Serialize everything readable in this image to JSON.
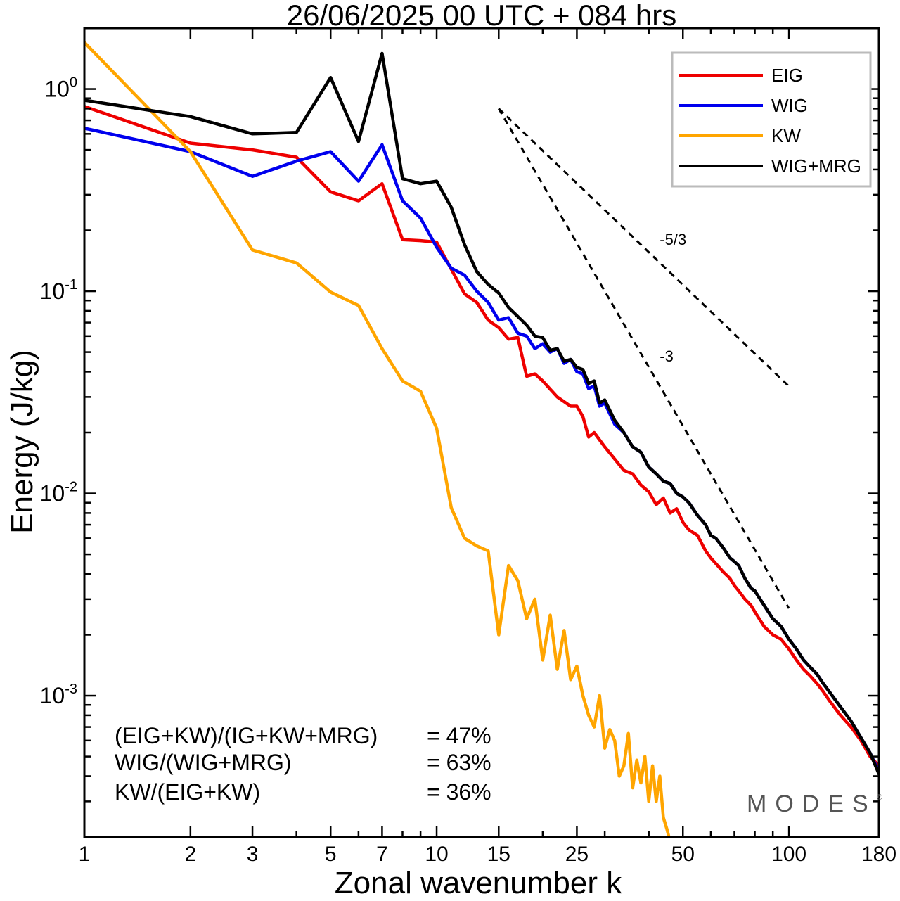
{
  "chart_data": {
    "type": "line",
    "title": "26/06/2025  00 UTC  + 084 hrs",
    "xlabel": "Zonal wavenumber k",
    "ylabel": "Energy (J/kg)",
    "xscale": "log",
    "yscale": "log",
    "xlim": [
      1,
      180
    ],
    "ylim": [
      0.0002,
      2.0
    ],
    "x_ticks": [
      1,
      2,
      3,
      5,
      7,
      10,
      15,
      25,
      50,
      100,
      180
    ],
    "x_tick_labels": [
      "1",
      "2",
      "3",
      "5",
      "7",
      "10",
      "15",
      "25",
      "50",
      "100",
      "180"
    ],
    "y_ticks": [
      {
        "value": 1.0,
        "base": "10",
        "exp": "0"
      },
      {
        "value": 0.1,
        "base": "10",
        "exp": "-1"
      },
      {
        "value": 0.01,
        "base": "10",
        "exp": "-2"
      },
      {
        "value": 0.001,
        "base": "10",
        "exp": "-3"
      }
    ],
    "grid": false,
    "legend_position": "top-right",
    "series": [
      {
        "name": "EIG",
        "color": "#ee0000",
        "points": [
          [
            1,
            0.82
          ],
          [
            2,
            0.54
          ],
          [
            3,
            0.5
          ],
          [
            4,
            0.46
          ],
          [
            5,
            0.31
          ],
          [
            6,
            0.28
          ],
          [
            7,
            0.34
          ],
          [
            8,
            0.18
          ],
          [
            9,
            0.178
          ],
          [
            10,
            0.175
          ],
          [
            12,
            0.097
          ],
          [
            13,
            0.088
          ],
          [
            14,
            0.072
          ],
          [
            15,
            0.066
          ],
          [
            16,
            0.058
          ],
          [
            17,
            0.059
          ],
          [
            18,
            0.038
          ],
          [
            19,
            0.039
          ],
          [
            20,
            0.036
          ],
          [
            22,
            0.03
          ],
          [
            24,
            0.027
          ],
          [
            25,
            0.027
          ],
          [
            26,
            0.024
          ],
          [
            27,
            0.019
          ],
          [
            28,
            0.02
          ],
          [
            30,
            0.017
          ],
          [
            32,
            0.0148
          ],
          [
            34,
            0.013
          ],
          [
            36,
            0.0125
          ],
          [
            38,
            0.011
          ],
          [
            40,
            0.0102
          ],
          [
            42,
            0.0088
          ],
          [
            44,
            0.0095
          ],
          [
            46,
            0.008
          ],
          [
            48,
            0.0084
          ],
          [
            50,
            0.0072
          ],
          [
            52,
            0.0066
          ],
          [
            55,
            0.0062
          ],
          [
            58,
            0.0052
          ],
          [
            60,
            0.0048
          ],
          [
            62,
            0.0045
          ],
          [
            65,
            0.0041
          ],
          [
            68,
            0.0038
          ],
          [
            70,
            0.0035
          ],
          [
            72,
            0.0033
          ],
          [
            75,
            0.003
          ],
          [
            78,
            0.0028
          ],
          [
            80,
            0.0026
          ],
          [
            85,
            0.0022
          ],
          [
            90,
            0.002
          ],
          [
            95,
            0.0019
          ],
          [
            100,
            0.0017
          ],
          [
            105,
            0.0015
          ],
          [
            110,
            0.00135
          ],
          [
            115,
            0.00125
          ],
          [
            120,
            0.00115
          ],
          [
            125,
            0.00105
          ],
          [
            130,
            0.00095
          ],
          [
            140,
            0.0008
          ],
          [
            150,
            0.0007
          ],
          [
            160,
            0.0006
          ],
          [
            170,
            0.0005
          ],
          [
            180,
            0.00045
          ]
        ]
      },
      {
        "name": "WIG",
        "color": "#0000ee",
        "points": [
          [
            1,
            0.64
          ],
          [
            2,
            0.49
          ],
          [
            3,
            0.37
          ],
          [
            4,
            0.44
          ],
          [
            5,
            0.49
          ],
          [
            6,
            0.35
          ],
          [
            7,
            0.53
          ],
          [
            8,
            0.28
          ],
          [
            9,
            0.23
          ],
          [
            10,
            0.165
          ],
          [
            11,
            0.13
          ],
          [
            12,
            0.12
          ],
          [
            13,
            0.1
          ],
          [
            14,
            0.088
          ],
          [
            15,
            0.072
          ],
          [
            16,
            0.074
          ],
          [
            17,
            0.062
          ],
          [
            18,
            0.06
          ],
          [
            19,
            0.052
          ],
          [
            20,
            0.055
          ],
          [
            21,
            0.05
          ],
          [
            22,
            0.052
          ],
          [
            23,
            0.044
          ],
          [
            24,
            0.046
          ],
          [
            25,
            0.04
          ],
          [
            26,
            0.039
          ],
          [
            27,
            0.033
          ],
          [
            28,
            0.034
          ],
          [
            29,
            0.027
          ],
          [
            30,
            0.028
          ],
          [
            32,
            0.022
          ],
          [
            34,
            0.02
          ],
          [
            36,
            0.017
          ],
          [
            38,
            0.016
          ],
          [
            40,
            0.0135
          ],
          [
            42,
            0.0125
          ],
          [
            44,
            0.0115
          ],
          [
            46,
            0.0112
          ],
          [
            48,
            0.01
          ],
          [
            50,
            0.0096
          ],
          [
            52,
            0.009
          ],
          [
            55,
            0.0078
          ],
          [
            58,
            0.007
          ],
          [
            60,
            0.0062
          ],
          [
            62,
            0.006
          ],
          [
            65,
            0.0054
          ],
          [
            68,
            0.0048
          ],
          [
            70,
            0.0046
          ],
          [
            72,
            0.0044
          ],
          [
            75,
            0.0038
          ],
          [
            78,
            0.0034
          ],
          [
            80,
            0.0033
          ],
          [
            85,
            0.0028
          ],
          [
            90,
            0.0024
          ],
          [
            95,
            0.0022
          ],
          [
            100,
            0.0019
          ],
          [
            105,
            0.0017
          ],
          [
            110,
            0.0015
          ],
          [
            115,
            0.00138
          ],
          [
            120,
            0.00128
          ],
          [
            125,
            0.00115
          ],
          [
            130,
            0.00105
          ],
          [
            140,
            0.00088
          ],
          [
            150,
            0.00075
          ],
          [
            160,
            0.00062
          ],
          [
            170,
            0.00052
          ],
          [
            180,
            0.00042
          ]
        ]
      },
      {
        "name": "KW",
        "color": "#ffa500",
        "points": [
          [
            1,
            1.7
          ],
          [
            2,
            0.49
          ],
          [
            3,
            0.16
          ],
          [
            4,
            0.138
          ],
          [
            5,
            0.099
          ],
          [
            6,
            0.085
          ],
          [
            7,
            0.052
          ],
          [
            8,
            0.036
          ],
          [
            9,
            0.032
          ],
          [
            10,
            0.021
          ],
          [
            11,
            0.0085
          ],
          [
            12,
            0.006
          ],
          [
            13,
            0.0055
          ],
          [
            14,
            0.0052
          ],
          [
            15,
            0.002
          ],
          [
            16,
            0.0044
          ],
          [
            17,
            0.0037
          ],
          [
            18,
            0.0024
          ],
          [
            19,
            0.003
          ],
          [
            20,
            0.0015
          ],
          [
            21,
            0.0025
          ],
          [
            22,
            0.00135
          ],
          [
            23,
            0.0021
          ],
          [
            24,
            0.0012
          ],
          [
            25,
            0.0014
          ],
          [
            26,
            0.001
          ],
          [
            27,
            0.0008
          ],
          [
            28,
            0.0007
          ],
          [
            29,
            0.001
          ],
          [
            30,
            0.00055
          ],
          [
            31,
            0.00068
          ],
          [
            32,
            0.0006
          ],
          [
            33,
            0.0004
          ],
          [
            34,
            0.00045
          ],
          [
            35,
            0.00065
          ],
          [
            36,
            0.00035
          ],
          [
            37,
            0.00048
          ],
          [
            38,
            0.00037
          ],
          [
            39,
            0.0005
          ],
          [
            40,
            0.0003
          ],
          [
            41,
            0.00045
          ],
          [
            42,
            0.0003
          ],
          [
            43,
            0.0004
          ],
          [
            44,
            0.00025
          ],
          [
            45,
            0.00022
          ],
          [
            46,
            0.00019
          ]
        ]
      },
      {
        "name": "WIG+MRG",
        "color": "#000000",
        "points": [
          [
            1,
            0.88
          ],
          [
            2,
            0.73
          ],
          [
            3,
            0.6
          ],
          [
            4,
            0.61
          ],
          [
            5,
            1.14
          ],
          [
            6,
            0.55
          ],
          [
            7,
            1.5
          ],
          [
            8,
            0.36
          ],
          [
            9,
            0.34
          ],
          [
            10,
            0.35
          ],
          [
            11,
            0.26
          ],
          [
            12,
            0.17
          ],
          [
            13,
            0.125
          ],
          [
            14,
            0.108
          ],
          [
            15,
            0.098
          ],
          [
            16,
            0.083
          ],
          [
            17,
            0.075
          ],
          [
            18,
            0.068
          ],
          [
            19,
            0.06
          ],
          [
            20,
            0.059
          ],
          [
            21,
            0.051
          ],
          [
            22,
            0.052
          ],
          [
            23,
            0.045
          ],
          [
            24,
            0.046
          ],
          [
            25,
            0.042
          ],
          [
            26,
            0.041
          ],
          [
            27,
            0.035
          ],
          [
            28,
            0.036
          ],
          [
            29,
            0.028
          ],
          [
            30,
            0.029
          ],
          [
            32,
            0.023
          ],
          [
            34,
            0.02
          ],
          [
            36,
            0.017
          ],
          [
            38,
            0.016
          ],
          [
            40,
            0.0135
          ],
          [
            42,
            0.0125
          ],
          [
            44,
            0.0115
          ],
          [
            46,
            0.0112
          ],
          [
            48,
            0.01
          ],
          [
            50,
            0.0096
          ],
          [
            52,
            0.009
          ],
          [
            55,
            0.0078
          ],
          [
            58,
            0.007
          ],
          [
            60,
            0.0062
          ],
          [
            62,
            0.006
          ],
          [
            65,
            0.0054
          ],
          [
            68,
            0.0048
          ],
          [
            70,
            0.0046
          ],
          [
            72,
            0.0044
          ],
          [
            75,
            0.0038
          ],
          [
            78,
            0.0034
          ],
          [
            80,
            0.0033
          ],
          [
            85,
            0.0028
          ],
          [
            90,
            0.0024
          ],
          [
            95,
            0.0022
          ],
          [
            100,
            0.0019
          ],
          [
            105,
            0.0017
          ],
          [
            110,
            0.0015
          ],
          [
            115,
            0.00138
          ],
          [
            120,
            0.00128
          ],
          [
            125,
            0.00115
          ],
          [
            130,
            0.00105
          ],
          [
            140,
            0.00088
          ],
          [
            150,
            0.00075
          ],
          [
            160,
            0.00062
          ],
          [
            170,
            0.00052
          ],
          [
            180,
            0.00041
          ]
        ]
      }
    ],
    "reference_lines": [
      {
        "label": "-5/3",
        "slope": -1.6667,
        "x": [
          15,
          100
        ],
        "y0": 0.8
      },
      {
        "label": "-3",
        "slope": -3,
        "x": [
          15,
          100
        ],
        "y0": 0.8
      }
    ],
    "annotations": [
      {
        "label": "(EIG+KW)/(IG+KW+MRG)",
        "value": "= 47%"
      },
      {
        "label": "WIG/(WIG+MRG)",
        "value": "= 63%"
      },
      {
        "label": "KW/(EIG+KW)",
        "value": "= 36%"
      }
    ],
    "brand": "MODES",
    "brand_mark": "©"
  }
}
